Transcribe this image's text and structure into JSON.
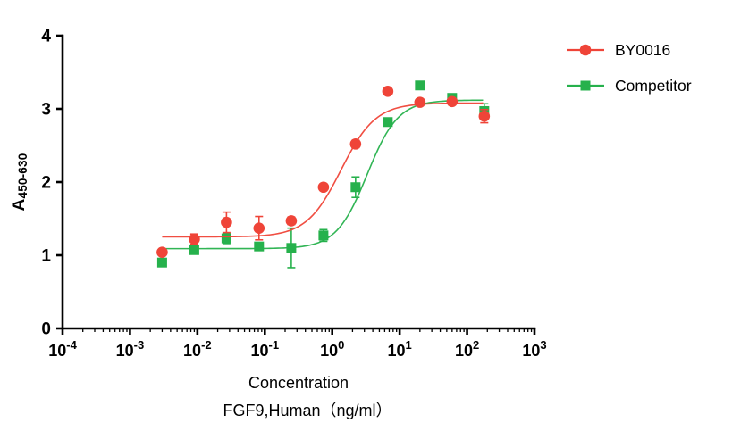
{
  "chart_data": {
    "type": "scatter",
    "title": "",
    "xlabel_line1": "Concentration",
    "xlabel_line2": "FGF9,Human（ng/ml）",
    "ylabel_main": "A",
    "ylabel_sub": "450-630",
    "x_scale": "log10",
    "x_tick_exponents": [
      -4,
      -3,
      -2,
      -1,
      0,
      1,
      2,
      3
    ],
    "y_ticks": [
      0,
      1,
      2,
      3,
      4
    ],
    "xlim_log": [
      -4,
      3
    ],
    "ylim": [
      0,
      4
    ],
    "grid": false,
    "legend_position": "right-top",
    "series": [
      {
        "name": "BY0016",
        "color": "#EF4438",
        "marker": "circle",
        "x": [
          0.003,
          0.009,
          0.027,
          0.082,
          0.247,
          0.741,
          2.22,
          6.67,
          20,
          60,
          180
        ],
        "y": [
          1.04,
          1.22,
          1.45,
          1.37,
          1.47,
          1.93,
          2.52,
          3.24,
          3.09,
          3.1,
          2.9
        ],
        "err": [
          0.04,
          0.07,
          0.14,
          0.16,
          0.05,
          0.04,
          0.05,
          0.04,
          0.03,
          0.04,
          0.09
        ],
        "fit": {
          "bottom": 1.25,
          "top": 3.08,
          "ec50": 1.35,
          "hill": 1.7
        }
      },
      {
        "name": "Competitor",
        "color": "#26B14C",
        "marker": "square",
        "x": [
          0.003,
          0.009,
          0.027,
          0.082,
          0.247,
          0.741,
          2.22,
          6.67,
          20,
          60,
          180
        ],
        "y": [
          0.9,
          1.07,
          1.23,
          1.12,
          1.1,
          1.27,
          1.93,
          2.82,
          3.32,
          3.15,
          2.97
        ],
        "err": [
          0.05,
          0.04,
          0.07,
          0.04,
          0.27,
          0.08,
          0.14,
          0.05,
          0.04,
          0.05,
          0.1
        ],
        "fit": {
          "bottom": 1.09,
          "top": 3.12,
          "ec50": 3.3,
          "hill": 1.9
        }
      }
    ]
  }
}
